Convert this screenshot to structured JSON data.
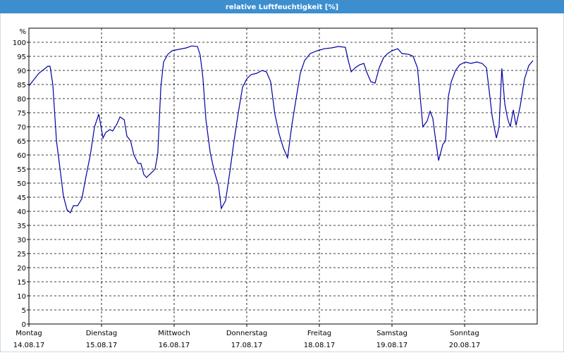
{
  "chart_data": {
    "type": "line",
    "title": "relative Luftfeuchtigkeit [%]",
    "y_label": "%",
    "x": [
      0,
      3.3,
      6.3,
      7,
      7.9,
      9.1,
      10.3,
      11.4,
      12.6,
      13.7,
      14.7,
      16.1,
      17.5,
      18.9,
      20.3,
      21.7,
      23.1,
      24.5,
      25.4,
      26.8,
      27.7,
      29.1,
      30.1,
      31.5,
      32.4,
      33.6,
      34.7,
      36.1,
      37,
      38,
      38.9,
      39.8,
      40.8,
      41.7,
      42.6,
      43.6,
      44.5,
      45.9,
      47.3,
      49.6,
      52,
      53.8,
      55.7,
      56.6,
      57.5,
      58.5,
      59.9,
      61.3,
      62.7,
      63.6,
      65,
      66.4,
      67.8,
      69.2,
      70.6,
      72,
      73.4,
      75.3,
      77.1,
      78.5,
      79.9,
      81.3,
      82.7,
      84.1,
      85.5,
      86.9,
      88.3,
      89.7,
      91.1,
      93,
      95.3,
      97.6,
      100,
      102.3,
      104.6,
      105.5,
      106.5,
      107.9,
      109.3,
      110.7,
      111.6,
      113,
      114.4,
      115.8,
      117.2,
      118.6,
      120,
      121.9,
      123.3,
      125.6,
      127,
      128.4,
      129.3,
      130.2,
      131.6,
      132.6,
      133.5,
      134.4,
      135.4,
      136.8,
      137.7,
      138.6,
      139.6,
      141,
      142.4,
      144.2,
      146.1,
      148,
      149.8,
      151.2,
      152.1,
      153.1,
      154.5,
      155.4,
      156.3,
      157.3,
      158.2,
      159.1,
      160.1,
      161,
      162.4,
      163.8,
      165.2,
      166.6
    ],
    "series": [
      {
        "name": "relative Luftfeuchtigkeit",
        "color": "#0000a0",
        "values": [
          84.5,
          89,
          91.5,
          91.5,
          85,
          65,
          55,
          45.5,
          40.5,
          39.5,
          42,
          42,
          44.5,
          52.5,
          60,
          70,
          74.5,
          66,
          68,
          69,
          68.5,
          71,
          73.5,
          72.5,
          66.7,
          65,
          60,
          57,
          57,
          53,
          52,
          53,
          54,
          55,
          60.5,
          84,
          93,
          95.7,
          97,
          97.5,
          98,
          98.7,
          98.5,
          95.5,
          87.5,
          72.5,
          61,
          54,
          49,
          41,
          43.8,
          54,
          65,
          75,
          84,
          87,
          88.5,
          89,
          90,
          89.5,
          86,
          74.5,
          67.5,
          62.5,
          59,
          70.5,
          80,
          89,
          93.5,
          96,
          97,
          97.7,
          98,
          98.5,
          98.2,
          93.7,
          89.5,
          91,
          92,
          92.5,
          89.5,
          86,
          85.5,
          91,
          94.5,
          96,
          97,
          97.7,
          96,
          95.7,
          95,
          91,
          81,
          70,
          72,
          75.5,
          73,
          65.5,
          58,
          63.7,
          65,
          80.5,
          86,
          90,
          92,
          93,
          92.5,
          93,
          92.5,
          91,
          83,
          73.7,
          66,
          70,
          90.7,
          78,
          73,
          70,
          76,
          70.5,
          77.5,
          87,
          91.7,
          93.5
        ]
      }
    ],
    "xlim": [
      0,
      168
    ],
    "xticks": [
      {
        "value": 0,
        "label": "Montag"
      },
      {
        "value": 24,
        "label": "Dienstag"
      },
      {
        "value": 48,
        "label": "Mittwoch"
      },
      {
        "value": 72,
        "label": "Donnerstag"
      },
      {
        "value": 96,
        "label": "Freitag"
      },
      {
        "value": 120,
        "label": "Samstag"
      },
      {
        "value": 144,
        "label": "Sonntag"
      }
    ],
    "xtick_dates": [
      "14.08.17",
      "15.08.17",
      "16.08.17",
      "17.08.17",
      "18.08.17",
      "19.08.17",
      "20.08.17"
    ],
    "ylim": [
      0,
      105
    ],
    "yticks": [
      0,
      5,
      10,
      15,
      20,
      25,
      30,
      35,
      40,
      45,
      50,
      55,
      60,
      65,
      70,
      75,
      80,
      85,
      90,
      95,
      100
    ],
    "grid": true
  }
}
